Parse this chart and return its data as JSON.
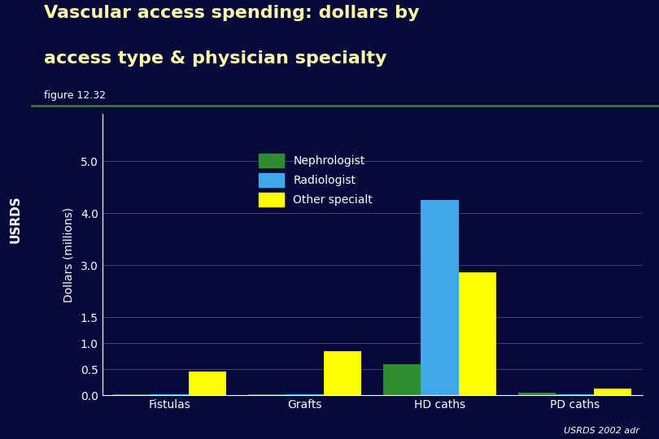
{
  "categories": [
    "Fistulas",
    "Grafts",
    "HD caths",
    "PD caths"
  ],
  "series": [
    "Nephrologist",
    "Radiologist",
    "Other specialt"
  ],
  "values": [
    [
      0.01,
      0.01,
      0.45
    ],
    [
      0.01,
      0.01,
      0.85
    ],
    [
      0.6,
      4.25,
      2.8
    ],
    [
      0.05,
      0.02,
      0.13
    ]
  ],
  "colors": [
    "#2e8b2e",
    "#3ea8e8",
    "#ffff00"
  ],
  "background_color": "#06093a",
  "plot_bg_color": "#06093a",
  "title_line1": "Vascular access spending: dollars by",
  "title_line2": "access type & physician specialty",
  "subtitle": "figure 12.32",
  "ylabel": "Dollars (millions)",
  "ytick_labels": [
    "0.0",
    "0.5",
    "1.0",
    "1.5",
    "",
    "3.0",
    "4.0",
    "5.0"
  ],
  "ytick_values": [
    0.0,
    0.5,
    1.0,
    1.5,
    2.0,
    3.0,
    4.0,
    5.0
  ],
  "ytick_positions": [
    0.0,
    0.5,
    1.0,
    1.5,
    2.5,
    3.5,
    4.5,
    5.5
  ],
  "ylim": [
    0,
    5.9
  ],
  "sidebar_color": "#2d5016",
  "sidebar_text": "USRDS",
  "title_color": "#ffffaa",
  "subtitle_color": "#ffffff",
  "axis_text_color": "#ffffff",
  "legend_text_color": "#ffffff",
  "bar_width": 0.28,
  "footer_text": "USRDS 2002 adr"
}
